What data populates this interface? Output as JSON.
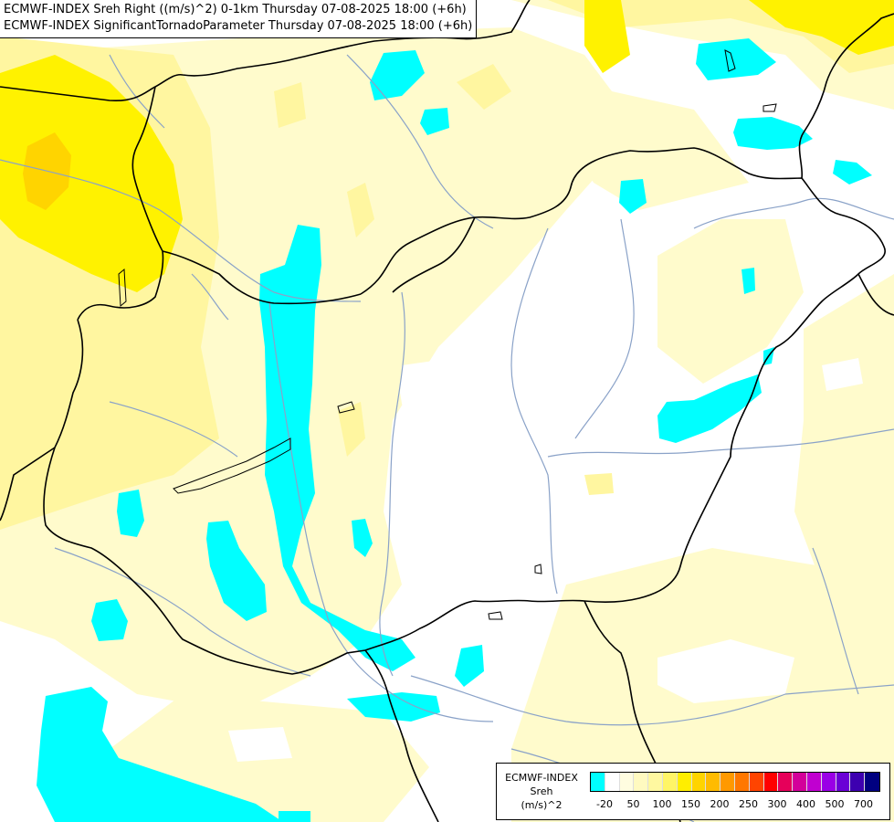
{
  "title": {
    "line1": "ECMWF-INDEX Sreh Right ((m/s)^2) 0-1km Thursday 07-08-2025 18:00 (+6h)",
    "line2": "ECMWF-INDEX SignificantTornadoParameter Thursday 07-08-2025 18:00 (+6h)"
  },
  "legend": {
    "line1": "ECMWF-INDEX",
    "line2": "Sreh",
    "line3": "(m/s)^2",
    "colors": [
      "#00ffff",
      "#ffffff",
      "#fffde0",
      "#fffac0",
      "#fff8a0",
      "#fff566",
      "#ffee00",
      "#ffd400",
      "#ffbb00",
      "#ff9900",
      "#ff7700",
      "#ff4400",
      "#ff0000",
      "#e6005a",
      "#d3009a",
      "#c000d0",
      "#9a00e6",
      "#6a00d6",
      "#3d00b0",
      "#000080"
    ],
    "ticks": [
      "-20",
      "50",
      "100",
      "150",
      "200",
      "250",
      "300",
      "400",
      "500",
      "700"
    ]
  },
  "colors": {
    "background": "#ffffff",
    "pale_yellow": "#fffbcc",
    "light_yellow": "#fff6a0",
    "yellow": "#fff200",
    "gold": "#ffd400",
    "cyan": "#00ffff",
    "river": "#8aa2c8",
    "border": "#000000"
  }
}
